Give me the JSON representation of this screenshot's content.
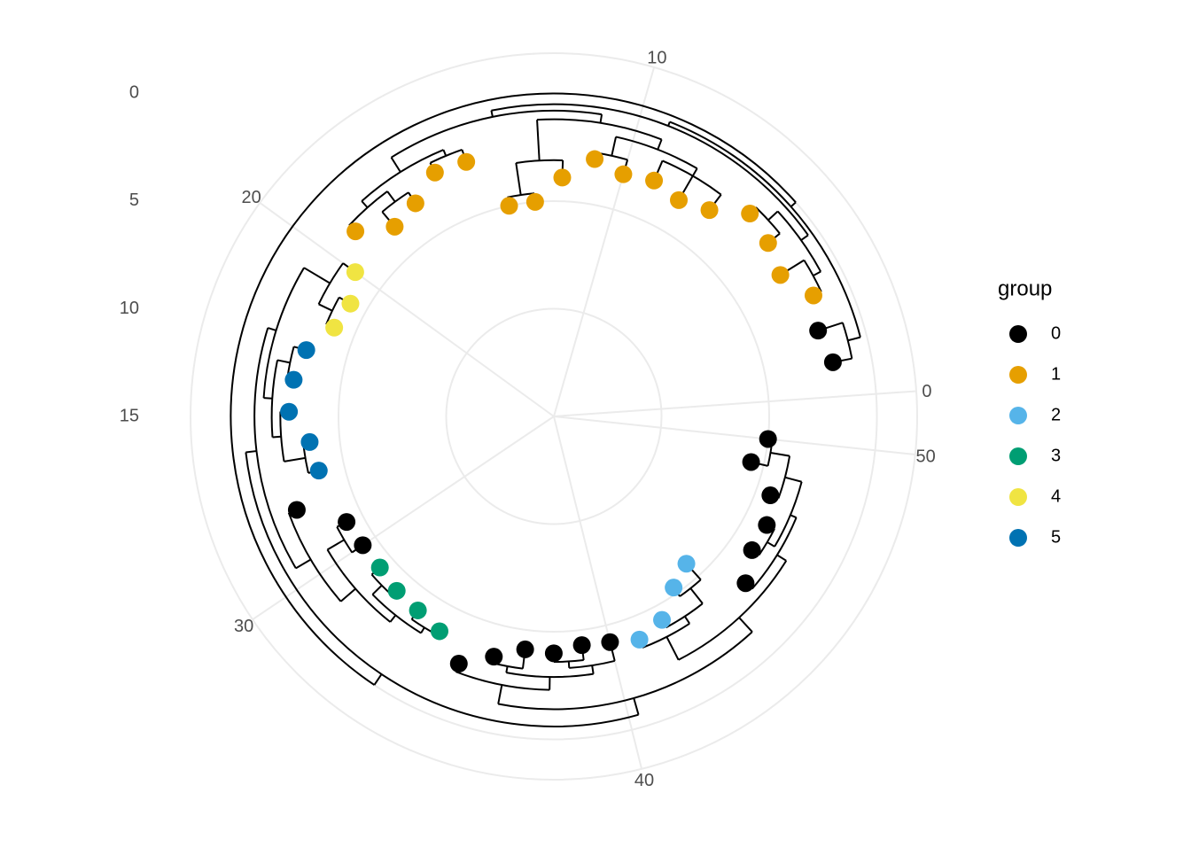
{
  "chart_data": {
    "type": "polar-dendrogram",
    "x": [
      1,
      2,
      3,
      4,
      5,
      6,
      7,
      8,
      9,
      10,
      11,
      12,
      13,
      14,
      15,
      16,
      17,
      18,
      19,
      20,
      21,
      22,
      23,
      24,
      25,
      26,
      27,
      28,
      29,
      30,
      31,
      32,
      33,
      34,
      35,
      36,
      37,
      38,
      39,
      40,
      41,
      42,
      43,
      44,
      45,
      46,
      47,
      48,
      49,
      50
    ],
    "y": [
      1.8,
      2.1,
      1.7,
      2.6,
      2.2,
      1.9,
      3.0,
      3.4,
      3.1,
      3.3,
      2.9,
      3.9,
      5.0,
      5.0,
      2.5,
      2.4,
      3.2,
      3.5,
      2.4,
      3.6,
      4.2,
      4.0,
      3.1,
      2.8,
      2.7,
      3.6,
      3.8,
      2.3,
      4.2,
      4.3,
      4.3,
      4.1,
      4.0,
      3.7,
      2.7,
      3.5,
      4.1,
      4.0,
      4.3,
      4.2,
      3.9,
      4.3,
      5.3,
      5.8,
      3.2,
      3.9,
      3.9,
      4.3,
      5.6,
      5.0
    ],
    "group": [
      0,
      0,
      1,
      1,
      1,
      1,
      1,
      1,
      1,
      1,
      1,
      1,
      1,
      1,
      1,
      1,
      1,
      1,
      1,
      4,
      4,
      4,
      5,
      5,
      5,
      5,
      5,
      0,
      0,
      0,
      3,
      3,
      3,
      3,
      0,
      0,
      0,
      0,
      0,
      0,
      2,
      2,
      2,
      2,
      0,
      0,
      0,
      0,
      0,
      0
    ],
    "legend_title": "group",
    "groups": [
      {
        "name": "0",
        "color": "#000000"
      },
      {
        "name": "1",
        "color": "#E69F00"
      },
      {
        "name": "2",
        "color": "#56B4E9"
      },
      {
        "name": "3",
        "color": "#009E73"
      },
      {
        "name": "4",
        "color": "#F0E442"
      },
      {
        "name": "5",
        "color": "#0072B2"
      }
    ],
    "xlim": [
      -0.57,
      50.86
    ],
    "xticks": [
      0,
      10,
      20,
      30,
      40,
      50
    ],
    "ylim": [
      15,
      -1.87
    ],
    "yticks": [
      0,
      5,
      10,
      15
    ],
    "grid": true,
    "tree": {
      "nodes": [
        {
          "depth": 0.9,
          "children": [
            0,
            1
          ]
        },
        {
          "depth": 1.3,
          "children": [
            2,
            3
          ]
        },
        {
          "depth": 1.5,
          "children": [
            4,
            5
          ]
        },
        {
          "depth": 0.9,
          "children": [
            51,
            52
          ]
        },
        {
          "depth": 2.1,
          "children": [
            6,
            7,
            8
          ]
        },
        {
          "depth": 2.6,
          "children": [
            9,
            10
          ]
        },
        {
          "depth": 4.6,
          "children": [
            12,
            13
          ]
        },
        {
          "depth": 3.1,
          "children": [
            11,
            56
          ]
        },
        {
          "depth": 1.7,
          "children": [
            54,
            55
          ]
        },
        {
          "depth": 1.2,
          "children": [
            58,
            57
          ]
        },
        {
          "depth": 1.9,
          "children": [
            14,
            15
          ]
        },
        {
          "depth": 2.6,
          "children": [
            16,
            17
          ]
        },
        {
          "depth": 2.0,
          "children": [
            18,
            61
          ]
        },
        {
          "depth": 1.6,
          "children": [
            60,
            62
          ]
        },
        {
          "depth": 0.8,
          "children": [
            59,
            63
          ]
        },
        {
          "depth": 0.5,
          "children": [
            53,
            64
          ]
        },
        {
          "depth": 0.3,
          "children": [
            50,
            65
          ]
        },
        {
          "depth": 3.6,
          "children": [
            20,
            21
          ]
        },
        {
          "depth": 2.9,
          "children": [
            19,
            67
          ]
        },
        {
          "depth": 2.5,
          "children": [
            22,
            23
          ]
        },
        {
          "depth": 3.3,
          "children": [
            25,
            26
          ]
        },
        {
          "depth": 2.3,
          "children": [
            24,
            70
          ]
        },
        {
          "depth": 1.9,
          "children": [
            69,
            71
          ]
        },
        {
          "depth": 1.5,
          "children": [
            68,
            72
          ]
        },
        {
          "depth": 3.7,
          "children": [
            28,
            29
          ]
        },
        {
          "depth": 3.8,
          "children": [
            30,
            31
          ]
        },
        {
          "depth": 3.5,
          "children": [
            32,
            33
          ]
        },
        {
          "depth": 3.2,
          "children": [
            75,
            76
          ]
        },
        {
          "depth": 2.8,
          "children": [
            74,
            77
          ]
        },
        {
          "depth": 1.9,
          "children": [
            27,
            78
          ]
        },
        {
          "depth": 1.1,
          "children": [
            73,
            79
          ]
        },
        {
          "depth": 3.2,
          "children": [
            35,
            36
          ]
        },
        {
          "depth": 3.6,
          "children": [
            37,
            38
          ]
        },
        {
          "depth": 3.3,
          "children": [
            82,
            39
          ]
        },
        {
          "depth": 2.9,
          "children": [
            81,
            83
          ]
        },
        {
          "depth": 2.3,
          "children": [
            34,
            84
          ]
        },
        {
          "depth": 4.8,
          "children": [
            42,
            43
          ]
        },
        {
          "depth": 3.9,
          "children": [
            41,
            86
          ]
        },
        {
          "depth": 3.5,
          "children": [
            40,
            87
          ]
        },
        {
          "depth": 4.8,
          "children": [
            48,
            49
          ]
        },
        {
          "depth": 3.9,
          "children": [
            47,
            89
          ]
        },
        {
          "depth": 3.5,
          "children": [
            45,
            46
          ]
        },
        {
          "depth": 3.1,
          "children": [
            91,
            90
          ]
        },
        {
          "depth": 2.8,
          "children": [
            44,
            92
          ]
        },
        {
          "depth": 2.3,
          "children": [
            88,
            93
          ]
        },
        {
          "depth": 1.4,
          "children": [
            85,
            94
          ]
        },
        {
          "depth": 0.6,
          "children": [
            80,
            95
          ]
        },
        {
          "depth": 0,
          "children": [
            66,
            96
          ]
        }
      ]
    }
  }
}
